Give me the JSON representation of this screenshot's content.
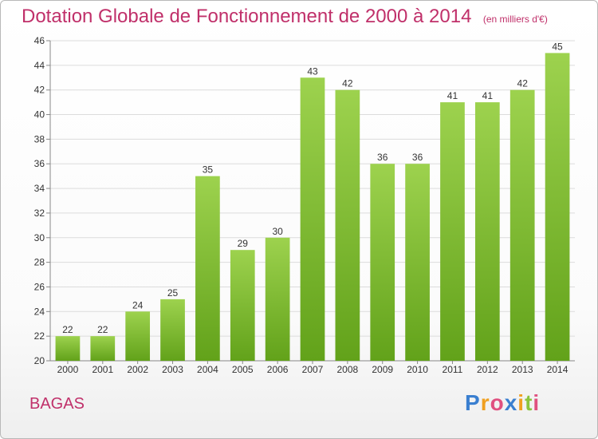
{
  "title": "Dotation Globale de Fonctionnement de 2000 à 2014",
  "subtitle": "(en milliers d'€)",
  "commune": "BAGAS",
  "logo_text": "Proxiti",
  "colors": {
    "title": "#c0306a",
    "bar_top": "#9dd24e",
    "bar_bottom": "#62a21a",
    "grid": "#dcdcdc"
  },
  "chart_data": {
    "type": "bar",
    "categories": [
      "2000",
      "2001",
      "2002",
      "2003",
      "2004",
      "2005",
      "2006",
      "2007",
      "2008",
      "2009",
      "2010",
      "2011",
      "2012",
      "2013",
      "2014"
    ],
    "values": [
      22,
      22,
      24,
      25,
      35,
      29,
      30,
      43,
      42,
      36,
      36,
      41,
      41,
      42,
      45
    ],
    "ylim": [
      20,
      46
    ],
    "yticks": [
      20,
      22,
      24,
      26,
      28,
      30,
      32,
      34,
      36,
      38,
      40,
      42,
      44,
      46
    ],
    "grid": true,
    "data_labels": true
  }
}
